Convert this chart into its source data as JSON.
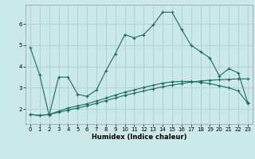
{
  "xlabel": "Humidex (Indice chaleur)",
  "background_color": "#cce9e9",
  "grid_color": "#aacfcf",
  "line_color": "#1a6b5a",
  "xlim": [
    -0.5,
    23.5
  ],
  "ylim": [
    1.3,
    6.9
  ],
  "yticks": [
    2,
    3,
    4,
    5,
    6
  ],
  "xticks": [
    0,
    1,
    2,
    3,
    4,
    5,
    6,
    7,
    8,
    9,
    10,
    11,
    12,
    13,
    14,
    15,
    16,
    17,
    18,
    19,
    20,
    21,
    22,
    23
  ],
  "line1_x": [
    0,
    1,
    2,
    3,
    4,
    5,
    6,
    7,
    8,
    9,
    10,
    11,
    12,
    13,
    14,
    15,
    16,
    17,
    18,
    19,
    20,
    21,
    22,
    23
  ],
  "line1_y": [
    4.9,
    3.6,
    1.7,
    3.5,
    3.5,
    2.7,
    2.6,
    2.9,
    3.8,
    4.6,
    5.5,
    5.35,
    5.5,
    5.95,
    6.55,
    6.55,
    5.75,
    5.0,
    4.7,
    4.4,
    3.55,
    3.9,
    3.7,
    2.3
  ],
  "line2_x": [
    0,
    1,
    2,
    3,
    4,
    5,
    6,
    7,
    8,
    9,
    10,
    11,
    12,
    13,
    14,
    15,
    16,
    17,
    18,
    19,
    20,
    21,
    22,
    23
  ],
  "line2_y": [
    1.75,
    1.7,
    1.75,
    1.85,
    1.95,
    2.05,
    2.15,
    2.27,
    2.4,
    2.52,
    2.65,
    2.75,
    2.85,
    2.95,
    3.05,
    3.13,
    3.2,
    3.27,
    3.32,
    3.36,
    3.38,
    3.4,
    3.42,
    3.42
  ],
  "line3_x": [
    0,
    1,
    2,
    3,
    4,
    5,
    6,
    7,
    8,
    9,
    10,
    11,
    12,
    13,
    14,
    15,
    16,
    17,
    18,
    19,
    20,
    21,
    22,
    23
  ],
  "line3_y": [
    1.75,
    1.7,
    1.75,
    1.9,
    2.05,
    2.15,
    2.25,
    2.38,
    2.52,
    2.66,
    2.8,
    2.9,
    3.02,
    3.12,
    3.22,
    3.28,
    3.3,
    3.3,
    3.26,
    3.2,
    3.1,
    3.0,
    2.85,
    2.28
  ]
}
